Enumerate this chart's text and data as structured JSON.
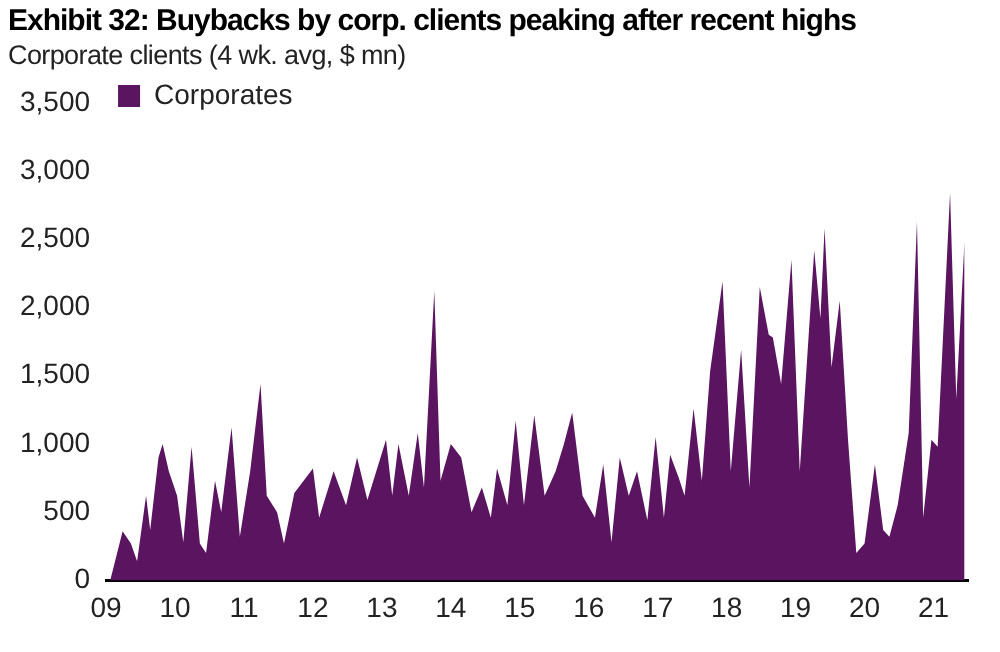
{
  "chart_data": {
    "type": "area",
    "title": "Exhibit 32: Buybacks by corp. clients peaking after recent highs",
    "subtitle": "Corporate clients (4 wk. avg, $ mn)",
    "x": [
      2009.06,
      2009.24,
      2009.36,
      2009.45,
      2009.58,
      2009.64,
      2009.76,
      2009.82,
      2009.91,
      2010.03,
      2010.12,
      2010.24,
      2010.36,
      2010.45,
      2010.58,
      2010.67,
      2010.82,
      2010.94,
      2011.09,
      2011.24,
      2011.33,
      2011.48,
      2011.58,
      2011.73,
      2012.0,
      2012.09,
      2012.3,
      2012.48,
      2012.64,
      2012.79,
      2013.06,
      2013.15,
      2013.24,
      2013.39,
      2013.52,
      2013.61,
      2013.76,
      2013.85,
      2014.0,
      2014.15,
      2014.3,
      2014.45,
      2014.58,
      2014.67,
      2014.82,
      2014.94,
      2015.06,
      2015.21,
      2015.36,
      2015.52,
      2015.64,
      2015.76,
      2015.91,
      2016.09,
      2016.21,
      2016.33,
      2016.45,
      2016.58,
      2016.7,
      2016.85,
      2016.97,
      2017.09,
      2017.18,
      2017.3,
      2017.39,
      2017.52,
      2017.64,
      2017.76,
      2017.94,
      2018.06,
      2018.21,
      2018.33,
      2018.48,
      2018.61,
      2018.67,
      2018.79,
      2018.94,
      2019.06,
      2019.27,
      2019.36,
      2019.42,
      2019.52,
      2019.64,
      2019.76,
      2019.88,
      2020.0,
      2020.15,
      2020.27,
      2020.36,
      2020.48,
      2020.64,
      2020.76,
      2020.85,
      2020.97,
      2021.06,
      2021.24,
      2021.33,
      2021.45
    ],
    "series": [
      {
        "name": "Corporates",
        "color": "#5a1460",
        "values": [
          0,
          360,
          270,
          140,
          620,
          370,
          900,
          1000,
          800,
          620,
          280,
          980,
          270,
          200,
          730,
          500,
          1120,
          320,
          800,
          1440,
          620,
          500,
          270,
          640,
          820,
          460,
          800,
          550,
          900,
          590,
          1030,
          620,
          1000,
          620,
          1080,
          680,
          2120,
          730,
          1000,
          900,
          500,
          680,
          460,
          820,
          550,
          1170,
          550,
          1210,
          620,
          800,
          1000,
          1230,
          620,
          460,
          850,
          280,
          900,
          620,
          800,
          440,
          1050,
          460,
          920,
          760,
          620,
          1260,
          730,
          1530,
          2190,
          800,
          1690,
          680,
          2150,
          1800,
          1780,
          1440,
          2350,
          800,
          2420,
          1920,
          2580,
          1560,
          2050,
          1030,
          200,
          270,
          850,
          370,
          320,
          550,
          1080,
          2630,
          460,
          1030,
          980,
          2840,
          1330,
          2490
        ]
      }
    ],
    "xlim": [
      2009,
      2021.5
    ],
    "xticks": [
      {
        "value": 2009,
        "label": "09"
      },
      {
        "value": 2010,
        "label": "10"
      },
      {
        "value": 2011,
        "label": "11"
      },
      {
        "value": 2012,
        "label": "12"
      },
      {
        "value": 2013,
        "label": "13"
      },
      {
        "value": 2014,
        "label": "14"
      },
      {
        "value": 2015,
        "label": "15"
      },
      {
        "value": 2016,
        "label": "16"
      },
      {
        "value": 2017,
        "label": "17"
      },
      {
        "value": 2018,
        "label": "18"
      },
      {
        "value": 2019,
        "label": "19"
      },
      {
        "value": 2020,
        "label": "20"
      },
      {
        "value": 2021,
        "label": "21"
      }
    ],
    "ylim": [
      0,
      3500
    ],
    "yticks": [
      0,
      500,
      {
        "value": 1000,
        "label": "1,000"
      },
      {
        "value": 1500,
        "label": "1,500"
      },
      {
        "value": 2000,
        "label": "2,000"
      },
      {
        "value": 2500,
        "label": "2,500"
      },
      {
        "value": 3000,
        "label": "3,000"
      },
      {
        "value": 3500,
        "label": "3,500"
      }
    ],
    "grid": false,
    "legend": "top left"
  }
}
